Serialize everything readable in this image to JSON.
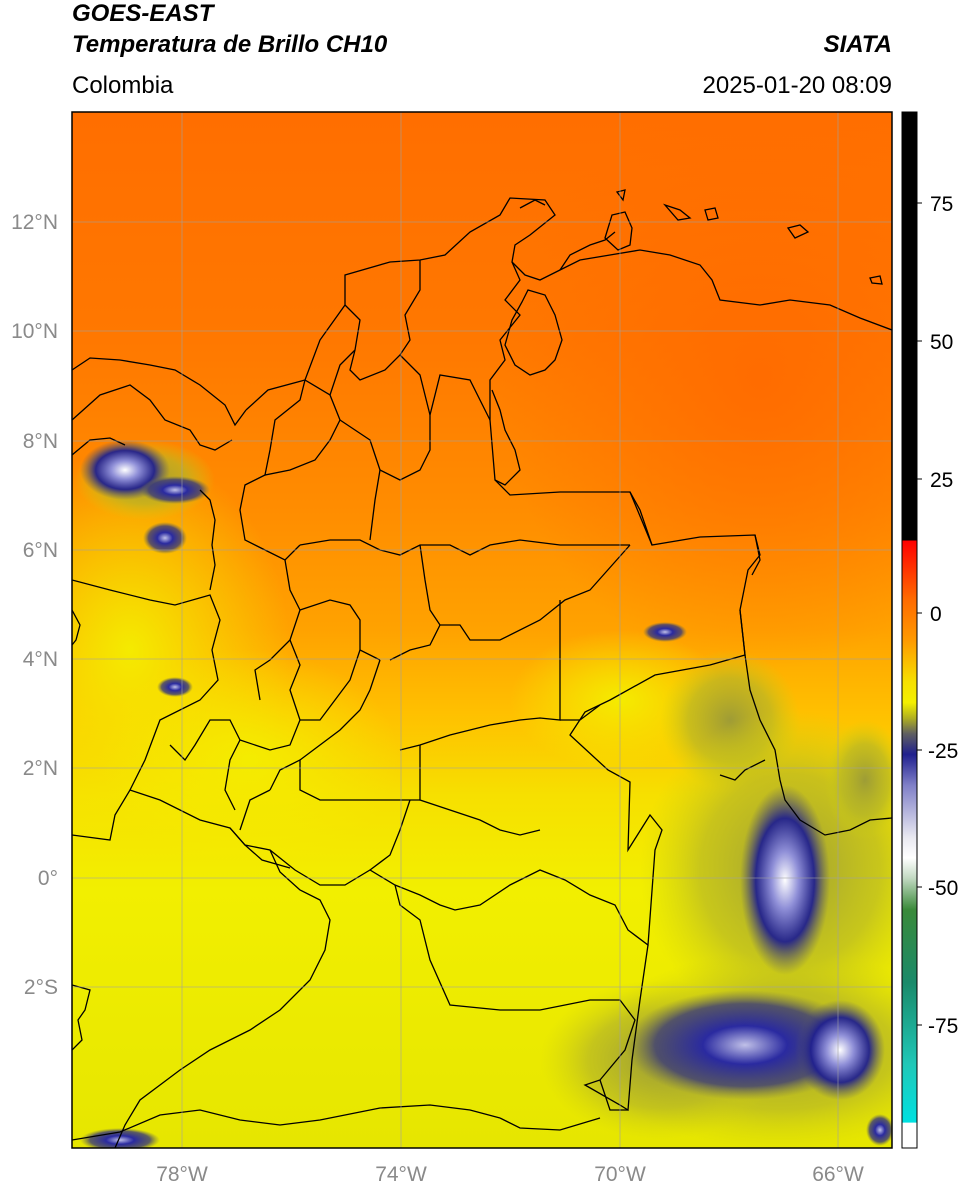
{
  "header": {
    "satellite": "GOES-EAST",
    "product": "Temperatura de Brillo CH10",
    "organization": "SIATA",
    "region": "Colombia",
    "timestamp": "2025-01-20 08:09"
  },
  "axes": {
    "lon_ticks": [
      {
        "value": -78,
        "label": "78°W"
      },
      {
        "value": -74,
        "label": "74°W"
      },
      {
        "value": -70,
        "label": "70°W"
      },
      {
        "value": -66,
        "label": "66°W"
      }
    ],
    "lat_ticks": [
      {
        "value": 12,
        "label": "12°N"
      },
      {
        "value": 10,
        "label": "10°N"
      },
      {
        "value": 8,
        "label": "8°N"
      },
      {
        "value": 6,
        "label": "6°N"
      },
      {
        "value": 4,
        "label": "4°N"
      },
      {
        "value": 2,
        "label": "2°N"
      },
      {
        "value": 0,
        "label": "0°"
      },
      {
        "value": -2,
        "label": "2°S"
      }
    ],
    "lon_range": [
      -80,
      -65
    ],
    "lat_range": [
      -5,
      14
    ]
  },
  "colorbar": {
    "range": [
      -95,
      90
    ],
    "ticks": [
      {
        "value": 75,
        "label": "75"
      },
      {
        "value": 50,
        "label": "50"
      },
      {
        "value": 25,
        "label": "25"
      },
      {
        "value": 0,
        "label": "0"
      },
      {
        "value": -25,
        "label": "-25"
      },
      {
        "value": -50,
        "label": "-50"
      },
      {
        "value": -75,
        "label": "-75"
      }
    ]
  },
  "colors": {
    "warm_orange": "#ff6a00",
    "mid_orange": "#ff9500",
    "yellow": "#f4f000",
    "olive": "#b0b020",
    "navy": "#1a1a90",
    "gridline": "#a0a0a0"
  }
}
